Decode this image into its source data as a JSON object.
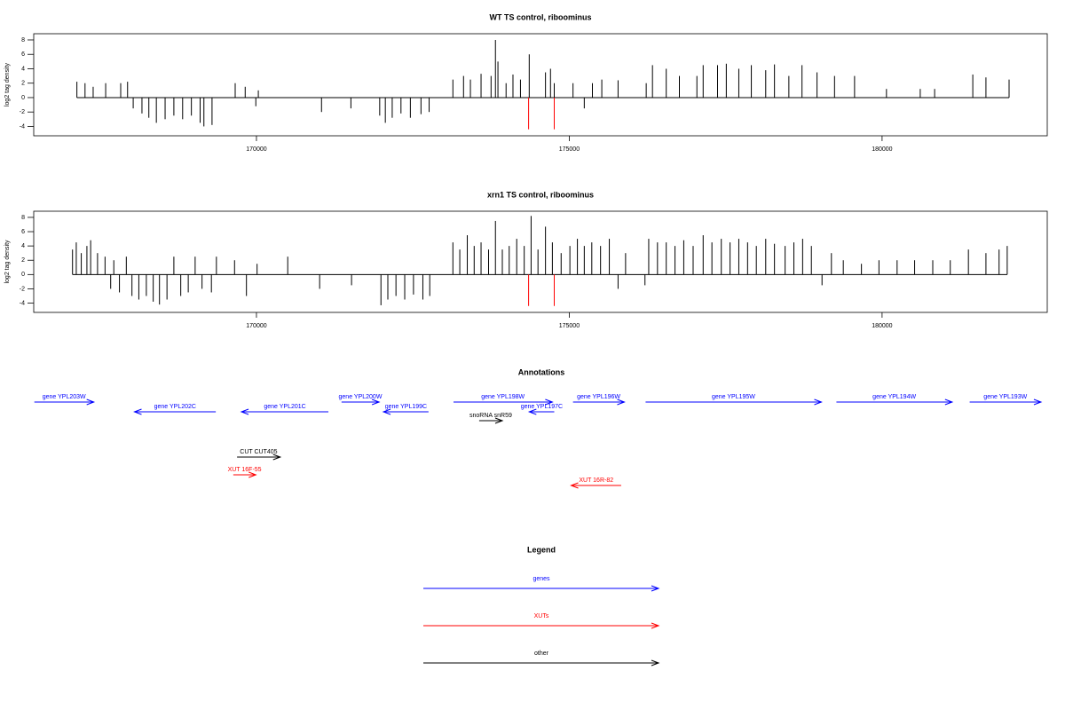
{
  "chart_data": [
    {
      "type": "bar",
      "title": "WT TS control, riboominus",
      "y_label": "log2 tag density",
      "xlim": [
        166440,
        182640
      ],
      "xticks": [
        170000,
        175000,
        180000
      ],
      "ylim": [
        -5.3,
        8.86
      ],
      "yticks": [
        -4,
        -2,
        0,
        2,
        4,
        6,
        8
      ],
      "series": [
        {
          "color": "#000000",
          "x": [
            167130,
            167260,
            167390,
            167590,
            167830,
            167940,
            168030,
            168170,
            168280,
            168400,
            168540,
            168680,
            168820,
            168960,
            169100,
            169160,
            169290,
            169660,
            169820,
            169990,
            170030,
            171040,
            171510,
            171970,
            172060,
            172170,
            172310,
            172460,
            172630,
            172760,
            173140,
            173310,
            173420,
            173590,
            173750,
            173820,
            173860,
            173990,
            174100,
            174220,
            174360,
            174620,
            174700,
            174760,
            175060,
            175240,
            175370,
            175520,
            175780,
            176230,
            176330,
            176550,
            176760,
            177040,
            177140,
            177370,
            177510,
            177710,
            177910,
            178140,
            178280,
            178510,
            178720,
            178960,
            179240,
            179560,
            180070,
            180610,
            180840,
            181450,
            181660,
            182030
          ],
          "values": [
            2.2,
            2,
            1.5,
            2,
            2,
            2.2,
            -1.5,
            -2.2,
            -2.8,
            -3.5,
            -3,
            -2.5,
            -3,
            -2.5,
            -3.5,
            -4,
            -3.8,
            2,
            1.5,
            -1.2,
            1,
            -2,
            -1.5,
            -2.5,
            -3.5,
            -2.8,
            -2.2,
            -2.8,
            -2.3,
            -2,
            2.5,
            3,
            2.5,
            3.3,
            3,
            8,
            5,
            2,
            3.2,
            2.5,
            6,
            3.5,
            4,
            2,
            2,
            -1.5,
            2,
            2.5,
            2.4,
            2,
            4.5,
            4,
            3,
            3,
            4.5,
            4.5,
            4.7,
            4,
            4.5,
            3.8,
            4.6,
            3,
            4.5,
            3.5,
            3,
            3,
            1.2,
            1.2,
            1.2,
            3.2,
            2.8,
            2.5
          ]
        },
        {
          "color": "#ff0000",
          "x": [
            174350,
            174760
          ],
          "values": [
            -4.4,
            -4.4
          ]
        }
      ]
    },
    {
      "type": "bar",
      "title": "xrn1 TS control, riboominus",
      "y_label": "log2 tag density",
      "xlim": [
        166440,
        182640
      ],
      "xticks": [
        170000,
        175000,
        180000
      ],
      "ylim": [
        -5.3,
        8.86
      ],
      "yticks": [
        -4,
        -2,
        0,
        2,
        4,
        6,
        8
      ],
      "series": [
        {
          "color": "#000000",
          "x": [
            167060,
            167120,
            167200,
            167290,
            167350,
            167460,
            167580,
            167670,
            167720,
            167810,
            167920,
            168010,
            168120,
            168240,
            168350,
            168450,
            168570,
            168680,
            168790,
            168910,
            169020,
            169130,
            169280,
            169360,
            169650,
            169840,
            170010,
            170500,
            171010,
            171520,
            171990,
            172100,
            172230,
            172370,
            172510,
            172660,
            172770,
            173140,
            173250,
            173370,
            173480,
            173590,
            173710,
            173820,
            173930,
            174040,
            174160,
            174280,
            174390,
            174500,
            174620,
            174730,
            174870,
            175010,
            175130,
            175240,
            175360,
            175500,
            175640,
            175780,
            175900,
            176210,
            176270,
            176410,
            176550,
            176690,
            176830,
            176980,
            177140,
            177280,
            177430,
            177570,
            177710,
            177850,
            177990,
            178140,
            178280,
            178450,
            178590,
            178730,
            178870,
            179040,
            179190,
            179380,
            179670,
            179950,
            180240,
            180520,
            180810,
            181090,
            181380,
            181660,
            181870,
            182000
          ],
          "values": [
            3.5,
            4.5,
            3,
            4,
            4.8,
            3,
            2.5,
            -2,
            2,
            -2.5,
            2.5,
            -3,
            -3.5,
            -3,
            -3.8,
            -4.2,
            -3.5,
            2.5,
            -3,
            -2.5,
            2.5,
            -2,
            -2.5,
            2.5,
            2,
            -3,
            1.5,
            2.5,
            -2,
            -1.5,
            -4.3,
            -3.5,
            -3,
            -3.5,
            -2.8,
            -3.5,
            -3,
            4.5,
            3.5,
            5.5,
            4,
            4.5,
            3.5,
            7.5,
            3.5,
            4,
            5,
            4,
            8.2,
            3.5,
            6.7,
            4.5,
            3,
            4,
            5,
            4,
            4.5,
            4,
            5,
            -2,
            3,
            -1.5,
            5,
            4.5,
            4.5,
            4,
            4.8,
            4,
            5.5,
            4.5,
            5,
            4.5,
            5,
            4.5,
            4,
            5,
            4.3,
            4,
            4.5,
            5,
            4,
            -1.5,
            3,
            2,
            1.5,
            2,
            2,
            2,
            2,
            2,
            3.5,
            3,
            3.5,
            4
          ]
        },
        {
          "color": "#ff0000",
          "x": [
            174350,
            174760
          ],
          "values": [
            -4.4,
            -4.4
          ]
        }
      ]
    }
  ],
  "annotations": {
    "title": "Annotations",
    "features": [
      {
        "label": "gene YPL203W",
        "track": "gene",
        "strand": "+",
        "start": 166450,
        "end": 167400,
        "color": "#0000ff"
      },
      {
        "label": "gene YPL202C",
        "track": "gene",
        "strand": "-",
        "start": 168050,
        "end": 169350,
        "color": "#0000ff"
      },
      {
        "label": "gene YPL201C",
        "track": "gene",
        "strand": "-",
        "start": 169760,
        "end": 171150,
        "color": "#0000ff"
      },
      {
        "label": "gene YPL200W",
        "track": "gene",
        "strand": "+",
        "start": 171360,
        "end": 171960,
        "color": "#0000ff"
      },
      {
        "label": "gene YPL199C",
        "track": "gene",
        "strand": "-",
        "start": 172030,
        "end": 172750,
        "color": "#0000ff"
      },
      {
        "label": "gene YPL198W",
        "track": "gene",
        "strand": "+",
        "start": 173150,
        "end": 174730,
        "color": "#0000ff"
      },
      {
        "label": "gene YPL197C",
        "track": "gene",
        "strand": "-",
        "start": 174360,
        "end": 174760,
        "color": "#0000ff"
      },
      {
        "label": "gene YPL196W",
        "track": "gene",
        "strand": "+",
        "start": 175060,
        "end": 175880,
        "color": "#0000ff"
      },
      {
        "label": "gene YPL195W",
        "track": "gene",
        "strand": "+",
        "start": 176220,
        "end": 179030,
        "color": "#0000ff"
      },
      {
        "label": "gene YPL194W",
        "track": "gene",
        "strand": "+",
        "start": 179270,
        "end": 181120,
        "color": "#0000ff"
      },
      {
        "label": "gene YPL193W",
        "track": "gene",
        "strand": "+",
        "start": 181400,
        "end": 182540,
        "color": "#0000ff"
      },
      {
        "label": "snoRNA snR59",
        "track": "snoRNA",
        "strand": "+",
        "start": 173560,
        "end": 173930,
        "color": "#000000"
      },
      {
        "label": "CUT CUT405",
        "track": "CUT",
        "strand": "+",
        "start": 169690,
        "end": 170380,
        "color": "#000000"
      },
      {
        "label": "XUT 16F-55",
        "track": "XUT",
        "strand": "+",
        "start": 169630,
        "end": 169990,
        "color": "#ff0000"
      },
      {
        "label": "XUT 16R-82",
        "track": "XUT",
        "strand": "-",
        "start": 175030,
        "end": 175830,
        "color": "#ff0000"
      }
    ]
  },
  "legend": {
    "title": "Legend",
    "items": [
      {
        "label": "genes",
        "color": "#0000ff"
      },
      {
        "label": "XUTs",
        "color": "#ff0000"
      },
      {
        "label": "other",
        "color": "#000000"
      }
    ]
  }
}
